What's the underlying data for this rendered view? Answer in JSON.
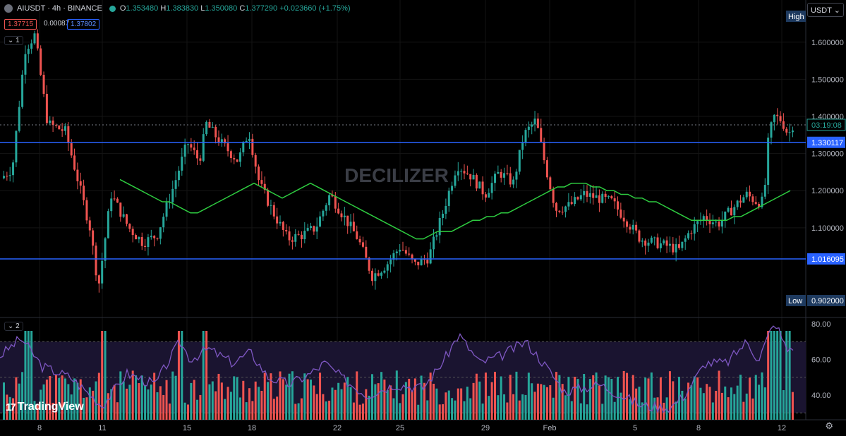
{
  "header": {
    "symbol": "AIUSDT · 4h · BINANCE",
    "o_label": "O",
    "o_value": "1.353480",
    "h_label": "H",
    "h_value": "1.383830",
    "l_label": "L",
    "l_value": "1.350080",
    "c_label": "C",
    "c_value": "1.377290",
    "change": "+0.023660 (+1.75%)",
    "bid": "1.37715",
    "spread": "0.00087",
    "ask": "1.37802"
  },
  "currency_button": "USDT",
  "pane1_label": "1",
  "pane2_label": "2",
  "watermark": "DECILIZER",
  "brand": "TradingView",
  "colors": {
    "up": "#26a69a",
    "down": "#ef5350",
    "ma": "#2ecc40",
    "rsi": "#7e57c2",
    "hline": "#2962ff"
  },
  "chart_data": [
    {
      "type": "candlestick",
      "symbol": "AIUSDT",
      "interval": "4h",
      "y_ticks": [
        1.1,
        1.2,
        1.3,
        1.4,
        1.5,
        1.6
      ],
      "y_tick_labels": [
        "1.100000",
        "1.200000",
        "1.300000",
        "1.400000",
        "1.500000",
        "1.600000"
      ],
      "ylim": [
        0.87,
        1.69
      ],
      "x_tick_labels": [
        "8",
        "11",
        "15",
        "18",
        "22",
        "25",
        "29",
        "Feb",
        "5",
        "8",
        "12"
      ],
      "horizontal_lines": [
        {
          "value": 1.330117,
          "label": "1.330117"
        },
        {
          "value": 1.016095,
          "label": "1.016095"
        }
      ],
      "price_line": {
        "value": 1.37729,
        "label": "03:19:08"
      },
      "high_marker": {
        "label": "High"
      },
      "low_marker": {
        "label": "Low",
        "value": 0.902,
        "value_label": "0.902000"
      },
      "ma_series": {
        "x": [
          30,
          40,
          50,
          60,
          70,
          80,
          90,
          100,
          110,
          120,
          130,
          140,
          150,
          160,
          170,
          180,
          190,
          200,
          210,
          220,
          230,
          240,
          250,
          260,
          270,
          280,
          290,
          300,
          310,
          320,
          330,
          340,
          350,
          360,
          370,
          380,
          390,
          400,
          410,
          420,
          430,
          440,
          450,
          460,
          470,
          480,
          490,
          500,
          510,
          520,
          530,
          540,
          550,
          560,
          570,
          580,
          590,
          600,
          610,
          620,
          630,
          640,
          650,
          660,
          670,
          680,
          690,
          700,
          710,
          720,
          730,
          740,
          750,
          760,
          770,
          780,
          790,
          800,
          810,
          820,
          830,
          840,
          850,
          860,
          870,
          880,
          890,
          900,
          910,
          920,
          930,
          940,
          950,
          960,
          970,
          980,
          990,
          1000,
          1010,
          1020,
          1030,
          1040,
          1050,
          1060,
          1070,
          1080,
          1090,
          1100,
          1110,
          1120,
          1130,
          1140,
          1150,
          1160,
          1170,
          1180,
          1190,
          1200
        ],
        "values": [
          1.23,
          1.22,
          1.22,
          1.22,
          1.23,
          1.22,
          1.21,
          1.2,
          1.19,
          1.2,
          1.21,
          1.23,
          1.25,
          1.24,
          1.23,
          1.22,
          1.21,
          1.2,
          1.19,
          1.18,
          1.17,
          1.17,
          1.16,
          1.15,
          1.14,
          1.14,
          1.15,
          1.16,
          1.17,
          1.18,
          1.19,
          1.2,
          1.21,
          1.22,
          1.21,
          1.2,
          1.19,
          1.18,
          1.19,
          1.2,
          1.21,
          1.22,
          1.21,
          1.2,
          1.19,
          1.18,
          1.17,
          1.16,
          1.15,
          1.14,
          1.13,
          1.12,
          1.11,
          1.1,
          1.09,
          1.08,
          1.07,
          1.07,
          1.08,
          1.09,
          1.09,
          1.09,
          1.1,
          1.11,
          1.12,
          1.12,
          1.13,
          1.13,
          1.14,
          1.14,
          1.15,
          1.16,
          1.17,
          1.18,
          1.19,
          1.2,
          1.21,
          1.21,
          1.22,
          1.22,
          1.22,
          1.21,
          1.21,
          1.2,
          1.2,
          1.19,
          1.19,
          1.18,
          1.18,
          1.17,
          1.17,
          1.16,
          1.15,
          1.14,
          1.13,
          1.12,
          1.12,
          1.12,
          1.12,
          1.12,
          1.12,
          1.13,
          1.13,
          1.14,
          1.15,
          1.16,
          1.17,
          1.18,
          1.19,
          1.2,
          1.21,
          1.22,
          1.23,
          1.24,
          1.25,
          1.26,
          1.27,
          1.28
        ],
        "color": "#2ecc40"
      }
    },
    {
      "type": "line+bar",
      "y_ticks": [
        40,
        60,
        80
      ],
      "y_tick_labels": [
        "40.00",
        "60.00",
        "80.00"
      ],
      "ylim": [
        27,
        83
      ],
      "bands": [
        70,
        50,
        30
      ]
    }
  ]
}
